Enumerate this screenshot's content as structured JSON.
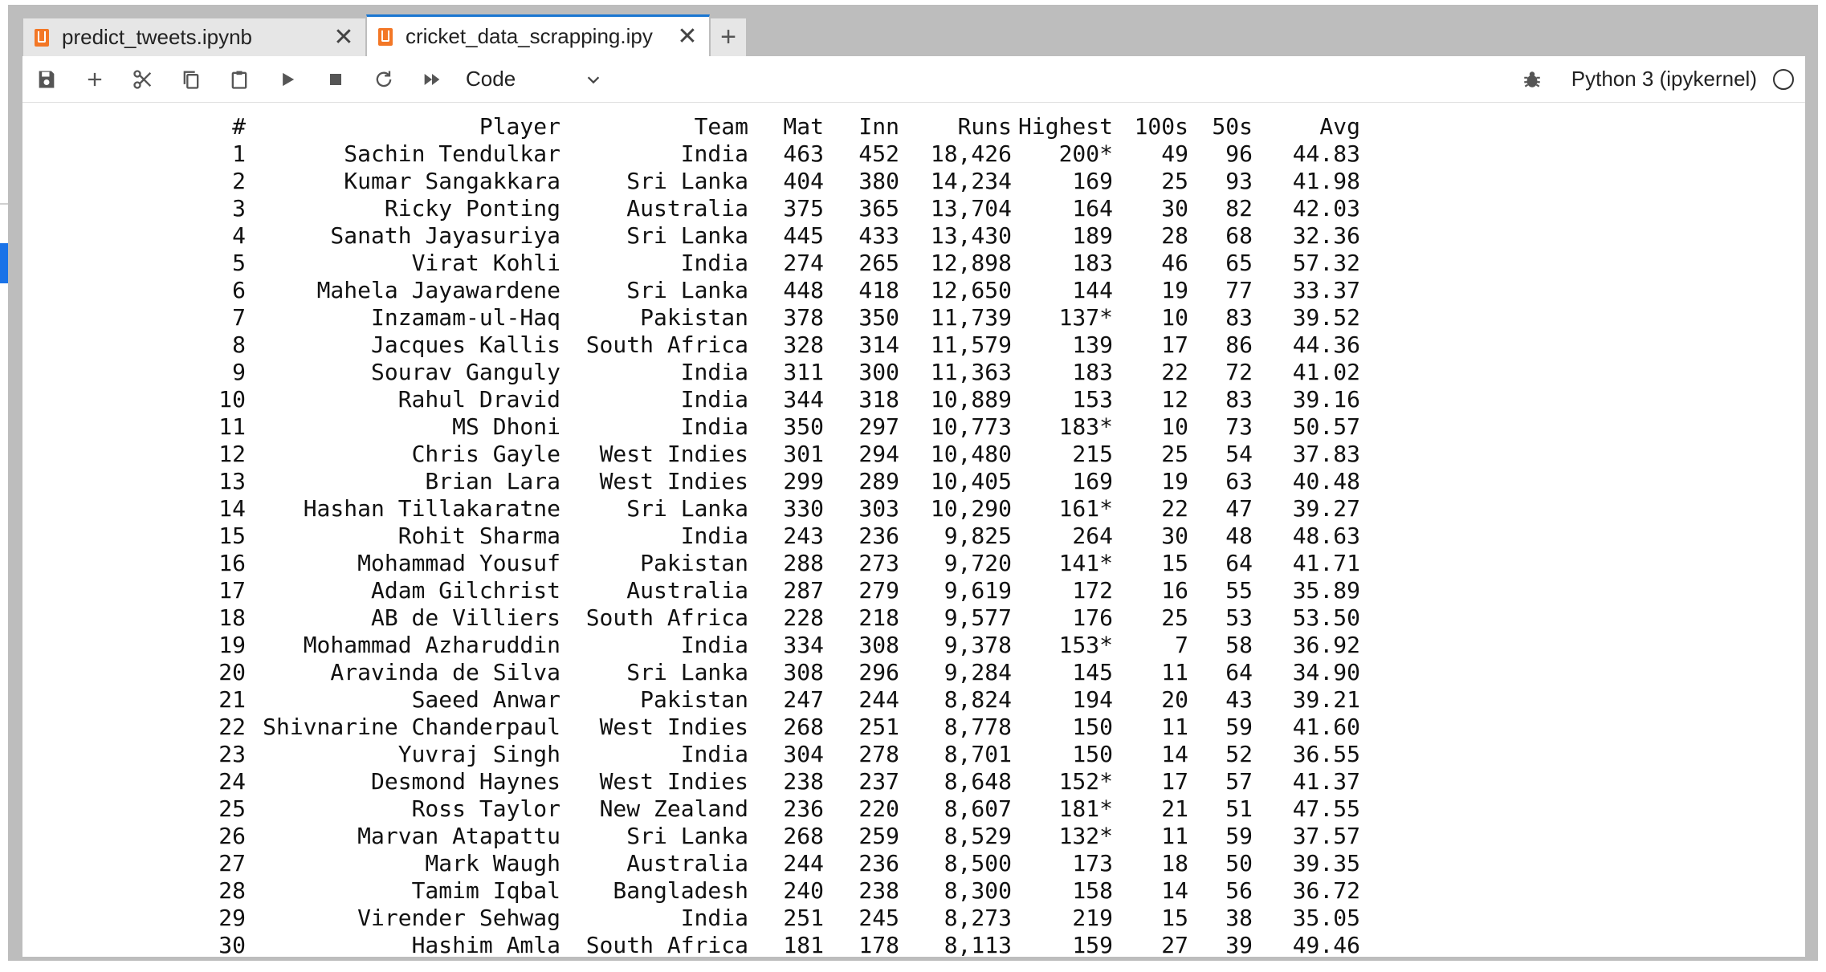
{
  "tabs": [
    {
      "label": "predict_tweets.ipynb",
      "active": false
    },
    {
      "label": "cricket_data_scrapping.ipy",
      "active": true
    }
  ],
  "tab_add_label": "+",
  "tab_close_glyph": "✕",
  "toolbar": {
    "cell_type": "Code",
    "kernel_name": "Python 3 (ipykernel)",
    "icons": [
      "save-icon",
      "add-cell-icon",
      "cut-icon",
      "copy-icon",
      "paste-icon",
      "run-icon",
      "stop-icon",
      "restart-icon",
      "run-all-icon",
      "bug-icon"
    ]
  },
  "colors": {
    "accent": "#1976d2",
    "notebook_icon": "#f37726"
  },
  "table": {
    "headers": [
      "#",
      "Player",
      "Team",
      "Mat",
      "Inn",
      "Runs",
      "Highest",
      "100s",
      "50s",
      "Avg"
    ],
    "rows": [
      [
        "1",
        "Sachin Tendulkar",
        "India",
        "463",
        "452",
        "18,426",
        "200*",
        "49",
        "96",
        "44.83"
      ],
      [
        "2",
        "Kumar Sangakkara",
        "Sri Lanka",
        "404",
        "380",
        "14,234",
        "169",
        "25",
        "93",
        "41.98"
      ],
      [
        "3",
        "Ricky Ponting",
        "Australia",
        "375",
        "365",
        "13,704",
        "164",
        "30",
        "82",
        "42.03"
      ],
      [
        "4",
        "Sanath Jayasuriya",
        "Sri Lanka",
        "445",
        "433",
        "13,430",
        "189",
        "28",
        "68",
        "32.36"
      ],
      [
        "5",
        "Virat Kohli",
        "India",
        "274",
        "265",
        "12,898",
        "183",
        "46",
        "65",
        "57.32"
      ],
      [
        "6",
        "Mahela Jayawardene",
        "Sri Lanka",
        "448",
        "418",
        "12,650",
        "144",
        "19",
        "77",
        "33.37"
      ],
      [
        "7",
        "Inzamam-ul-Haq",
        "Pakistan",
        "378",
        "350",
        "11,739",
        "137*",
        "10",
        "83",
        "39.52"
      ],
      [
        "8",
        "Jacques Kallis",
        "South Africa",
        "328",
        "314",
        "11,579",
        "139",
        "17",
        "86",
        "44.36"
      ],
      [
        "9",
        "Sourav Ganguly",
        "India",
        "311",
        "300",
        "11,363",
        "183",
        "22",
        "72",
        "41.02"
      ],
      [
        "10",
        "Rahul Dravid",
        "India",
        "344",
        "318",
        "10,889",
        "153",
        "12",
        "83",
        "39.16"
      ],
      [
        "11",
        "MS Dhoni",
        "India",
        "350",
        "297",
        "10,773",
        "183*",
        "10",
        "73",
        "50.57"
      ],
      [
        "12",
        "Chris Gayle",
        "West Indies",
        "301",
        "294",
        "10,480",
        "215",
        "25",
        "54",
        "37.83"
      ],
      [
        "13",
        "Brian Lara",
        "West Indies",
        "299",
        "289",
        "10,405",
        "169",
        "19",
        "63",
        "40.48"
      ],
      [
        "14",
        "Hashan Tillakaratne",
        "Sri Lanka",
        "330",
        "303",
        "10,290",
        "161*",
        "22",
        "47",
        "39.27"
      ],
      [
        "15",
        "Rohit Sharma",
        "India",
        "243",
        "236",
        "9,825",
        "264",
        "30",
        "48",
        "48.63"
      ],
      [
        "16",
        "Mohammad Yousuf",
        "Pakistan",
        "288",
        "273",
        "9,720",
        "141*",
        "15",
        "64",
        "41.71"
      ],
      [
        "17",
        "Adam Gilchrist",
        "Australia",
        "287",
        "279",
        "9,619",
        "172",
        "16",
        "55",
        "35.89"
      ],
      [
        "18",
        "AB de Villiers",
        "South Africa",
        "228",
        "218",
        "9,577",
        "176",
        "25",
        "53",
        "53.50"
      ],
      [
        "19",
        "Mohammad Azharuddin",
        "India",
        "334",
        "308",
        "9,378",
        "153*",
        "7",
        "58",
        "36.92"
      ],
      [
        "20",
        "Aravinda de Silva",
        "Sri Lanka",
        "308",
        "296",
        "9,284",
        "145",
        "11",
        "64",
        "34.90"
      ],
      [
        "21",
        "Saeed Anwar",
        "Pakistan",
        "247",
        "244",
        "8,824",
        "194",
        "20",
        "43",
        "39.21"
      ],
      [
        "22",
        "Shivnarine Chanderpaul",
        "West Indies",
        "268",
        "251",
        "8,778",
        "150",
        "11",
        "59",
        "41.60"
      ],
      [
        "23",
        "Yuvraj Singh",
        "India",
        "304",
        "278",
        "8,701",
        "150",
        "14",
        "52",
        "36.55"
      ],
      [
        "24",
        "Desmond Haynes",
        "West Indies",
        "238",
        "237",
        "8,648",
        "152*",
        "17",
        "57",
        "41.37"
      ],
      [
        "25",
        "Ross Taylor",
        "New Zealand",
        "236",
        "220",
        "8,607",
        "181*",
        "21",
        "51",
        "47.55"
      ],
      [
        "26",
        "Marvan Atapattu",
        "Sri Lanka",
        "268",
        "259",
        "8,529",
        "132*",
        "11",
        "59",
        "37.57"
      ],
      [
        "27",
        "Mark Waugh",
        "Australia",
        "244",
        "236",
        "8,500",
        "173",
        "18",
        "50",
        "39.35"
      ],
      [
        "28",
        "Tamim Iqbal",
        "Bangladesh",
        "240",
        "238",
        "8,300",
        "158",
        "14",
        "56",
        "36.72"
      ],
      [
        "29",
        "Virender Sehwag",
        "India",
        "251",
        "245",
        "8,273",
        "219",
        "15",
        "38",
        "35.05"
      ],
      [
        "30",
        "Hashim Amla",
        "South Africa",
        "181",
        "178",
        "8,113",
        "159",
        "27",
        "39",
        "49.46"
      ]
    ]
  }
}
